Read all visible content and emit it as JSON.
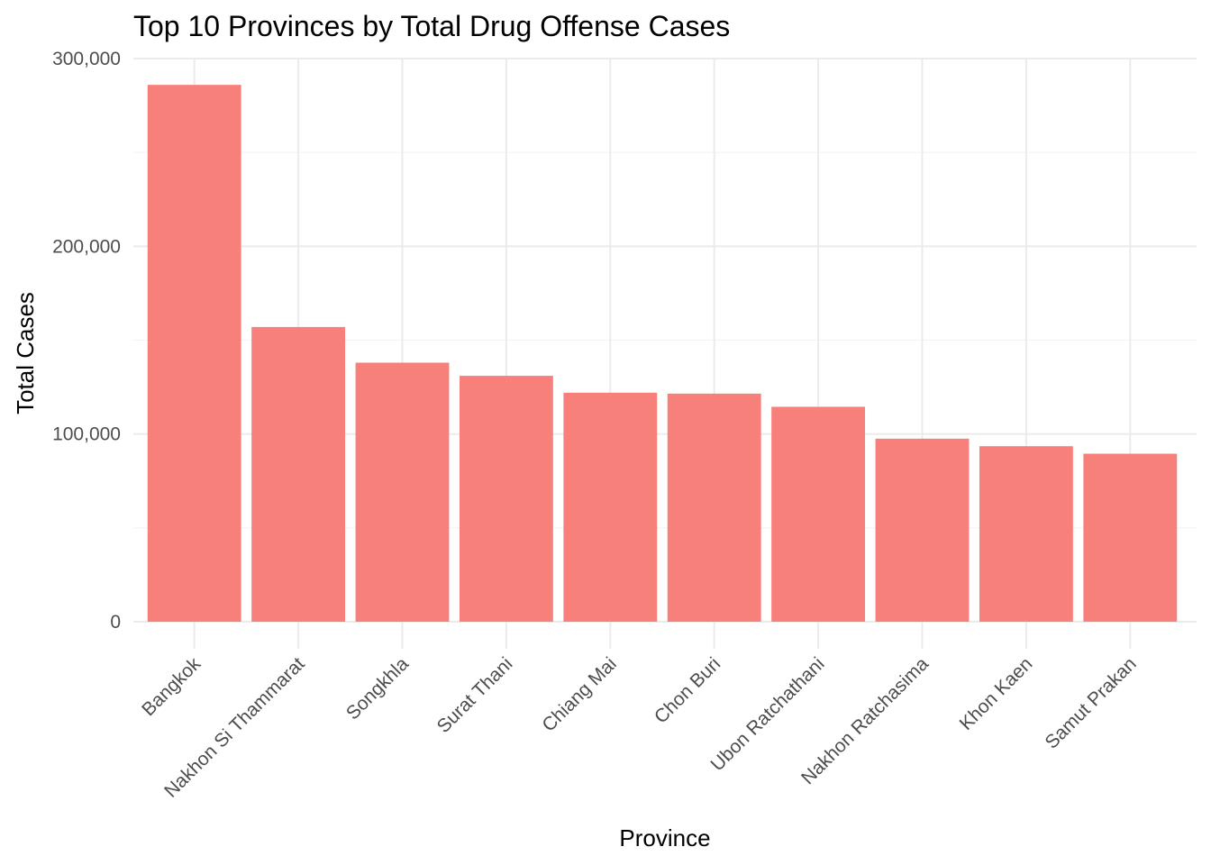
{
  "chart_data": {
    "type": "bar",
    "title": "Top 10 Provinces by Total Drug Offense Cases",
    "xlabel": "Province",
    "ylabel": "Total Cases",
    "categories": [
      "Bangkok",
      "Nakhon Si Thammarat",
      "Songkhla",
      "Surat Thani",
      "Chiang Mai",
      "Chon Buri",
      "Ubon Ratchathani",
      "Nakhon Ratchasima",
      "Khon Kaen",
      "Samut Prakan"
    ],
    "values": [
      286000,
      157000,
      138000,
      131000,
      122000,
      121500,
      114500,
      97500,
      93500,
      89500
    ],
    "ylim": [
      0,
      300000
    ],
    "yticks": [
      0,
      100000,
      200000,
      300000
    ],
    "ytick_labels": [
      "0",
      "100,000",
      "200,000",
      "300,000"
    ],
    "bar_color": "#f8807a",
    "grid": true,
    "legend": "none"
  }
}
